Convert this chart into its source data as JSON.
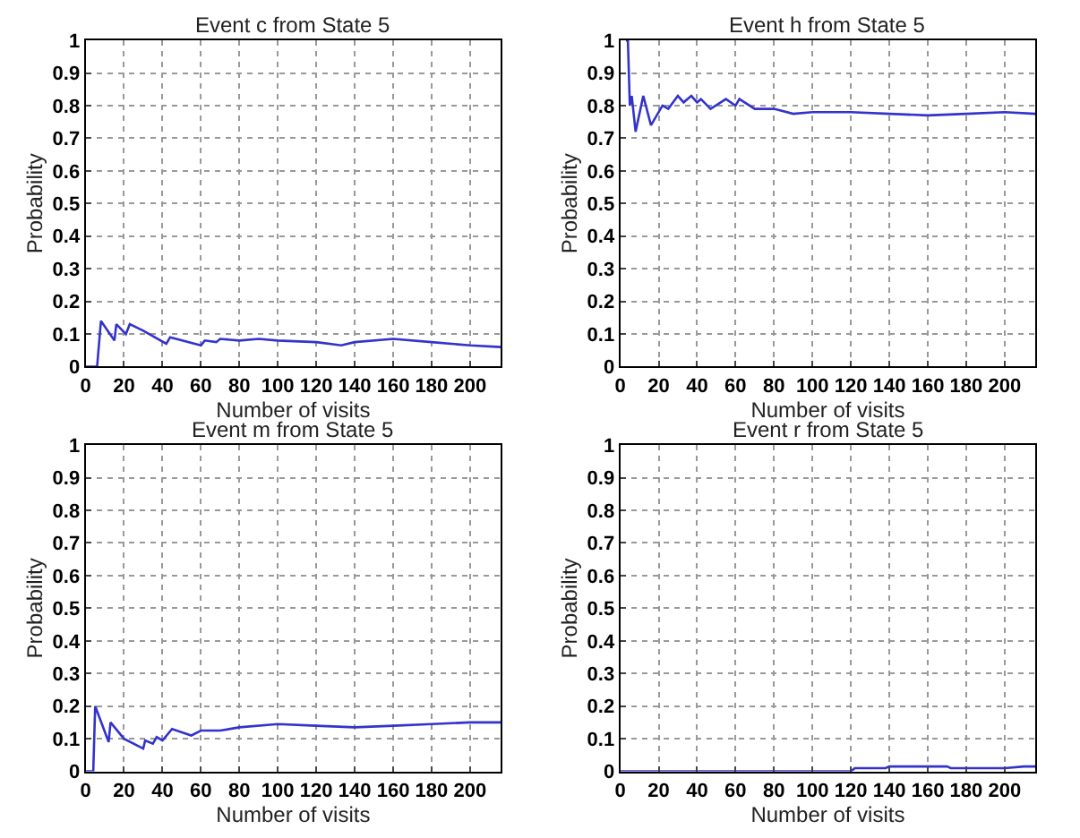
{
  "chart_data": [
    {
      "type": "line",
      "title": "Event c from State 5",
      "xlabel": "Number of visits",
      "ylabel": "Probability",
      "grid": true,
      "xlim": [
        0,
        216
      ],
      "ylim": [
        0,
        1
      ],
      "xticks": [
        0,
        20,
        40,
        60,
        80,
        100,
        120,
        140,
        160,
        180,
        200
      ],
      "yticks": [
        0,
        0.1,
        0.2,
        0.3,
        0.4,
        0.5,
        0.6,
        0.7,
        0.8,
        0.9,
        1
      ],
      "series": [
        {
          "color": "#3333cc",
          "x": [
            0,
            6,
            8,
            15,
            16,
            21,
            23,
            30,
            42,
            44,
            60,
            62,
            68,
            70,
            80,
            90,
            100,
            120,
            133,
            140,
            160,
            180,
            200,
            216
          ],
          "values": [
            0,
            0,
            0.14,
            0.08,
            0.13,
            0.1,
            0.13,
            0.11,
            0.07,
            0.09,
            0.065,
            0.08,
            0.075,
            0.085,
            0.08,
            0.085,
            0.08,
            0.075,
            0.065,
            0.075,
            0.085,
            0.075,
            0.065,
            0.06
          ]
        }
      ]
    },
    {
      "type": "line",
      "title": "Event h from State 5",
      "xlabel": "Number of visits",
      "ylabel": "Probability",
      "grid": true,
      "xlim": [
        0,
        216
      ],
      "ylim": [
        0,
        1
      ],
      "xticks": [
        0,
        20,
        40,
        60,
        80,
        100,
        120,
        140,
        160,
        180,
        200
      ],
      "yticks": [
        0,
        0.1,
        0.2,
        0.3,
        0.4,
        0.5,
        0.6,
        0.7,
        0.8,
        0.9,
        1
      ],
      "series": [
        {
          "color": "#3333cc",
          "x": [
            3,
            4,
            5,
            6,
            8,
            12,
            16,
            22,
            25,
            30,
            33,
            37,
            40,
            42,
            47,
            55,
            60,
            62,
            70,
            80,
            90,
            100,
            120,
            140,
            160,
            180,
            200,
            216
          ],
          "values": [
            1,
            1,
            0.8,
            0.83,
            0.72,
            0.83,
            0.74,
            0.8,
            0.79,
            0.83,
            0.81,
            0.83,
            0.81,
            0.82,
            0.79,
            0.82,
            0.8,
            0.82,
            0.79,
            0.79,
            0.775,
            0.78,
            0.78,
            0.775,
            0.77,
            0.775,
            0.78,
            0.775
          ]
        }
      ]
    },
    {
      "type": "line",
      "title": "Event m from State 5",
      "xlabel": "Number of visits",
      "ylabel": "Probability",
      "grid": true,
      "xlim": [
        0,
        216
      ],
      "ylim": [
        0,
        1
      ],
      "xticks": [
        0,
        20,
        40,
        60,
        80,
        100,
        120,
        140,
        160,
        180,
        200
      ],
      "yticks": [
        0,
        0.1,
        0.2,
        0.3,
        0.4,
        0.5,
        0.6,
        0.7,
        0.8,
        0.9,
        1
      ],
      "series": [
        {
          "color": "#3333cc",
          "x": [
            0,
            4,
            5,
            12,
            13,
            20,
            30,
            31,
            35,
            37,
            40,
            45,
            55,
            60,
            70,
            80,
            100,
            120,
            140,
            160,
            180,
            200,
            216
          ],
          "values": [
            0,
            0,
            0.2,
            0.09,
            0.15,
            0.1,
            0.07,
            0.095,
            0.085,
            0.105,
            0.095,
            0.13,
            0.11,
            0.125,
            0.125,
            0.135,
            0.145,
            0.14,
            0.135,
            0.14,
            0.145,
            0.15,
            0.15
          ]
        }
      ]
    },
    {
      "type": "line",
      "title": "Event r from State 5",
      "xlabel": "Number of visits",
      "ylabel": "Probability",
      "grid": true,
      "xlim": [
        0,
        216
      ],
      "ylim": [
        0,
        1
      ],
      "xticks": [
        0,
        20,
        40,
        60,
        80,
        100,
        120,
        140,
        160,
        180,
        200
      ],
      "yticks": [
        0,
        0.1,
        0.2,
        0.3,
        0.4,
        0.5,
        0.6,
        0.7,
        0.8,
        0.9,
        1
      ],
      "series": [
        {
          "color": "#3333cc",
          "x": [
            0,
            120,
            122,
            138,
            140,
            170,
            172,
            200,
            210,
            216
          ],
          "values": [
            0,
            0,
            0.01,
            0.01,
            0.015,
            0.015,
            0.01,
            0.01,
            0.015,
            0.015
          ]
        }
      ]
    }
  ]
}
